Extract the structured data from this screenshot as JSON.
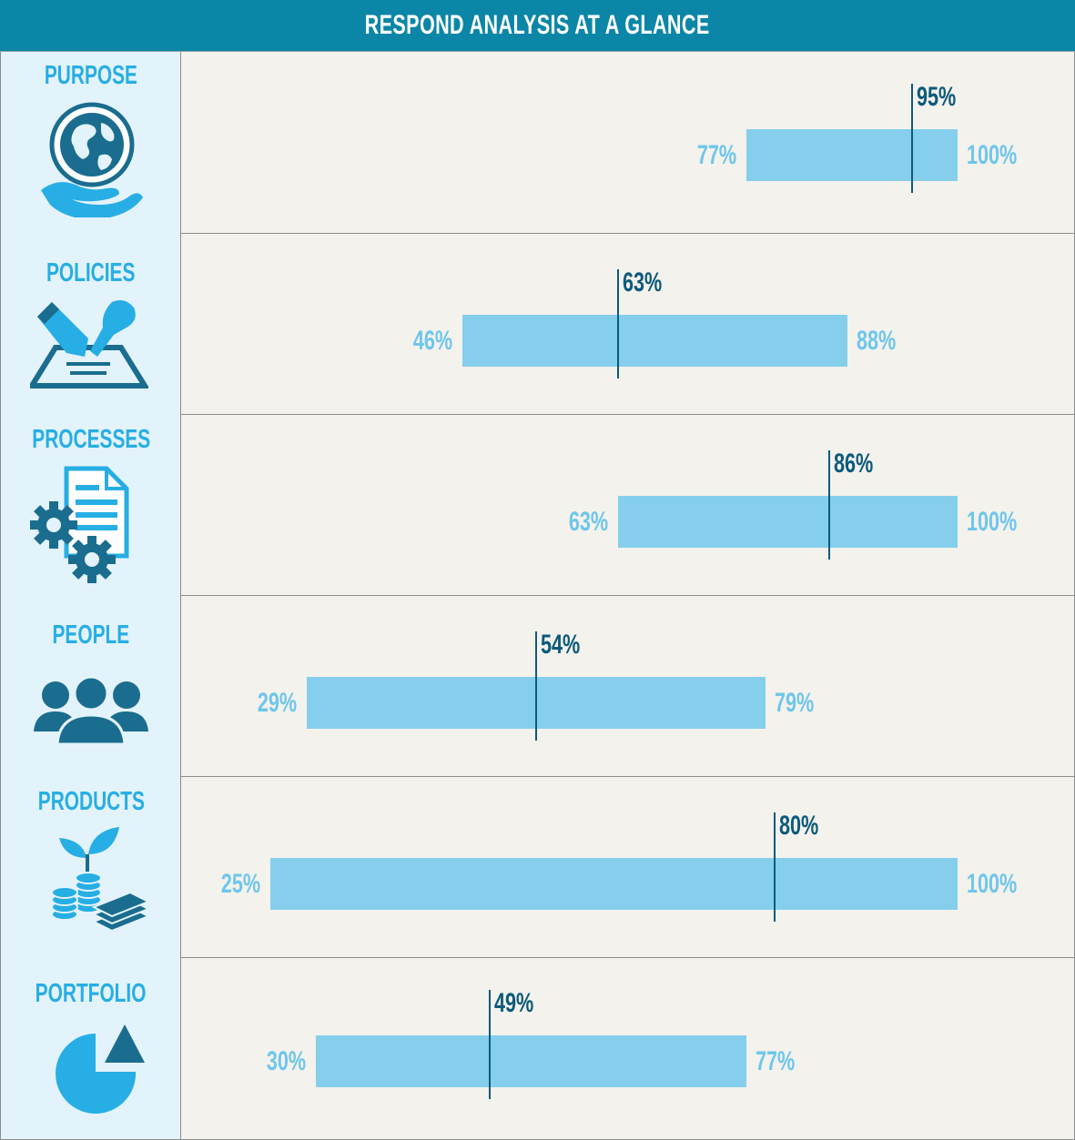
{
  "header": {
    "title": "RESPOND ANALYSIS AT A GLANCE"
  },
  "colors": {
    "header_bg": "#0b86a6",
    "label_bg": "#e3f3fb",
    "plot_bg": "#f4f2ec",
    "bar": "#85cfec",
    "marker": "#0b5a7c",
    "category_text": "#27aee4",
    "range_text": "#6ec6ec"
  },
  "chart_data": {
    "type": "bar",
    "xlim": [
      0,
      100
    ],
    "grid": false,
    "categories": [
      "PURPOSE",
      "POLICIES",
      "PROCESSES",
      "PEOPLE",
      "PRODUCTS",
      "PORTFOLIO"
    ],
    "icons": [
      "globe-in-hand-icon",
      "signing-document-icon",
      "document-gears-icon",
      "people-group-icon",
      "growth-money-icon",
      "pie-chart-icon"
    ],
    "series": [
      {
        "values_min": [
          77,
          46,
          63,
          29,
          25,
          30
        ]
      },
      {
        "values_max": [
          100,
          88,
          100,
          79,
          100,
          77
        ]
      },
      {
        "values_marker": [
          95,
          63,
          86,
          54,
          80,
          49
        ]
      }
    ],
    "labels_min": [
      "77%",
      "46%",
      "63%",
      "29%",
      "25%",
      "30%"
    ],
    "labels_max": [
      "100%",
      "88%",
      "100%",
      "79%",
      "100%",
      "77%"
    ],
    "labels_marker": [
      "95%",
      "63%",
      "86%",
      "54%",
      "80%",
      "49%"
    ]
  }
}
